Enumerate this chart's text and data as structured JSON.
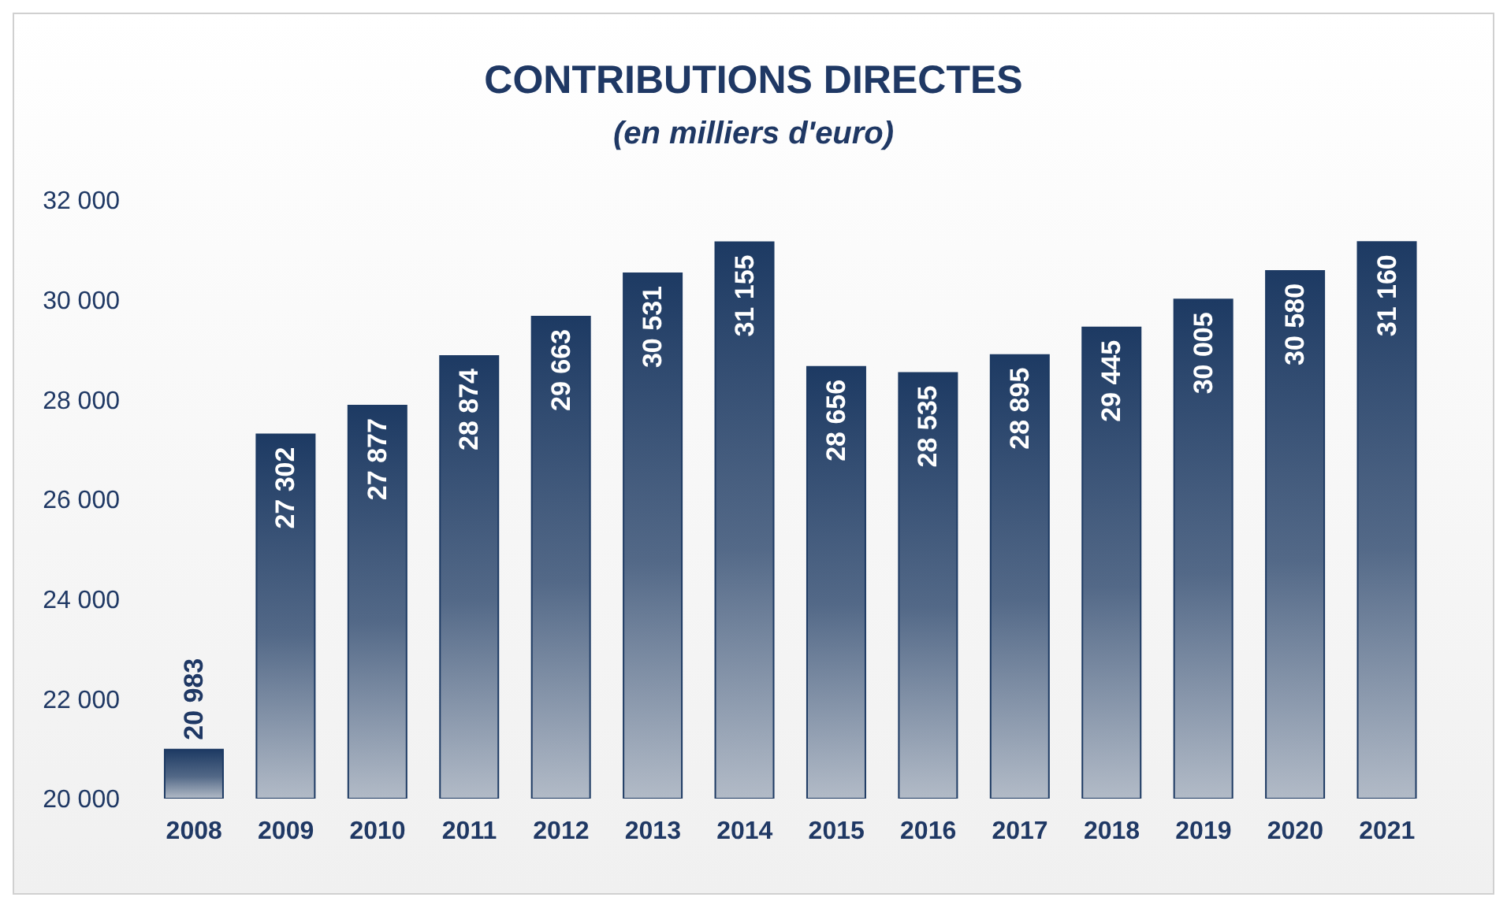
{
  "chart_data": {
    "type": "bar",
    "title": "CONTRIBUTIONS DIRECTES",
    "subtitle": "(en milliers d'euro)",
    "categories": [
      "2008",
      "2009",
      "2010",
      "2011",
      "2012",
      "2013",
      "2014",
      "2015",
      "2016",
      "2017",
      "2018",
      "2019",
      "2020",
      "2021"
    ],
    "values": [
      20983,
      27302,
      27877,
      28874,
      29663,
      30531,
      31155,
      28656,
      28535,
      28895,
      29445,
      30005,
      30580,
      31160
    ],
    "value_labels": [
      "20 983",
      "27 302",
      "27 877",
      "28 874",
      "29 663",
      "30 531",
      "31 155",
      "28 656",
      "28 535",
      "28 895",
      "29 445",
      "30 005",
      "30 580",
      "31 160"
    ],
    "color": "#1d3a63",
    "ylim": [
      20000,
      32000
    ],
    "yticks": [
      {
        "value": 20000,
        "label": "20 000"
      },
      {
        "value": 22000,
        "label": "22 000"
      },
      {
        "value": 24000,
        "label": "24 000"
      },
      {
        "value": 26000,
        "label": "26 000"
      },
      {
        "value": 28000,
        "label": "28 000"
      },
      {
        "value": 30000,
        "label": "30 000"
      },
      {
        "value": 32000,
        "label": "32 000"
      }
    ],
    "grid": false
  }
}
